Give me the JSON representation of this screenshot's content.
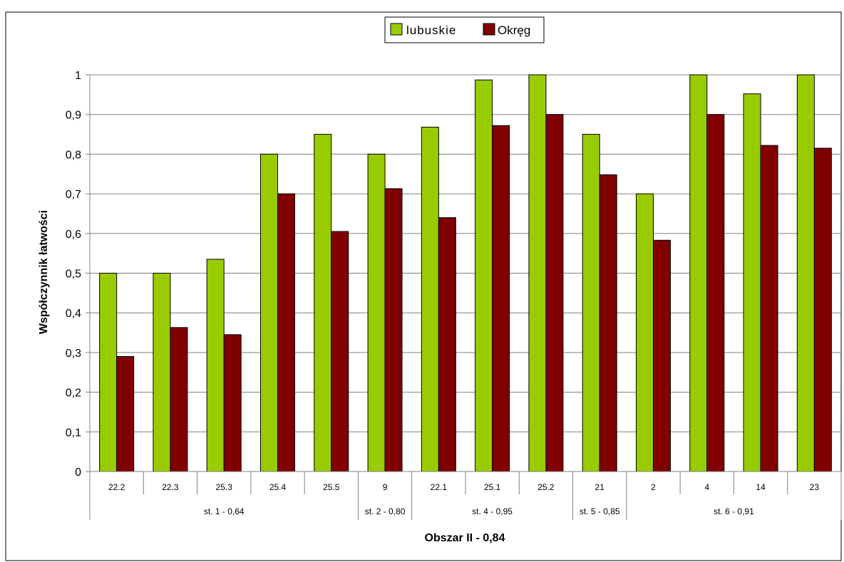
{
  "chart_data": {
    "type": "bar",
    "title": "",
    "xlabel": "Obszar II - 0,84",
    "ylabel": "Współczynnik łatwości",
    "ylim": [
      0,
      1
    ],
    "yticks": [
      "0",
      "0,1",
      "0,2",
      "0,3",
      "0,4",
      "0,5",
      "0,6",
      "0,7",
      "0,8",
      "0,9",
      "1"
    ],
    "grid": true,
    "legend_position": "top-center",
    "categories": [
      "22.2",
      "22.3",
      "25.3",
      "25.4",
      "25.5",
      "9",
      "22.1",
      "25.1",
      "25.2",
      "21",
      "2",
      "4",
      "14",
      "23"
    ],
    "groups": [
      {
        "label": "st. 1 - 0,64",
        "start": 0,
        "end": 4
      },
      {
        "label": "st. 2 - 0,80",
        "start": 5,
        "end": 5
      },
      {
        "label": "st. 4 - 0,95",
        "start": 6,
        "end": 8
      },
      {
        "label": "st. 5 - 0,85",
        "start": 9,
        "end": 9
      },
      {
        "label": "st. 6 - 0,91",
        "start": 10,
        "end": 13
      }
    ],
    "series": [
      {
        "name": "lubuskie",
        "color": "#99cc00",
        "values": [
          0.5,
          0.5,
          0.535,
          0.8,
          0.85,
          0.8,
          0.868,
          0.987,
          1.0,
          0.85,
          0.7,
          1.0,
          0.952,
          1.0
        ]
      },
      {
        "name": "Okręg",
        "color": "#800000",
        "values": [
          0.29,
          0.363,
          0.345,
          0.7,
          0.605,
          0.713,
          0.64,
          0.872,
          0.9,
          0.748,
          0.583,
          0.9,
          0.822,
          0.815
        ]
      }
    ]
  }
}
